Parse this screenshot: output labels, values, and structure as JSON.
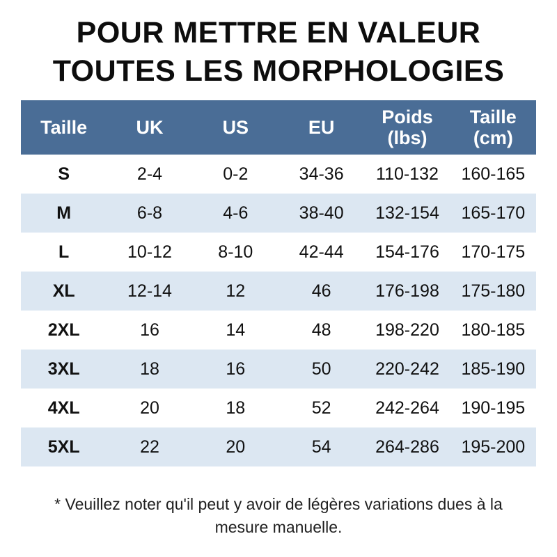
{
  "title": {
    "line1": "POUR METTRE EN VALEUR",
    "line2": "TOUTES LES MORPHOLOGIES"
  },
  "chart_data": {
    "type": "table",
    "title": "POUR METTRE EN VALEUR TOUTES LES MORPHOLOGIES",
    "columns": [
      {
        "label": "Taille",
        "sub": ""
      },
      {
        "label": "UK",
        "sub": ""
      },
      {
        "label": "US",
        "sub": ""
      },
      {
        "label": "EU",
        "sub": ""
      },
      {
        "label": "Poids",
        "sub": "(lbs)"
      },
      {
        "label": "Taille",
        "sub": "(cm)"
      }
    ],
    "rows": [
      [
        "S",
        "2-4",
        "0-2",
        "34-36",
        "110-132",
        "160-165"
      ],
      [
        "M",
        "6-8",
        "4-6",
        "38-40",
        "132-154",
        "165-170"
      ],
      [
        "L",
        "10-12",
        "8-10",
        "42-44",
        "154-176",
        "170-175"
      ],
      [
        "XL",
        "12-14",
        "12",
        "46",
        "176-198",
        "175-180"
      ],
      [
        "2XL",
        "16",
        "14",
        "48",
        "198-220",
        "180-185"
      ],
      [
        "3XL",
        "18",
        "16",
        "50",
        "220-242",
        "185-190"
      ],
      [
        "4XL",
        "20",
        "18",
        "52",
        "242-264",
        "190-195"
      ],
      [
        "5XL",
        "22",
        "20",
        "54",
        "264-286",
        "195-200"
      ]
    ]
  },
  "footnote": "* Veuillez noter qu'il peut y avoir de légères variations dues à la mesure manuelle.",
  "colors": {
    "header_bg": "#4a6d96",
    "header_text": "#ffffff",
    "row_alt_bg": "#dce7f2"
  }
}
